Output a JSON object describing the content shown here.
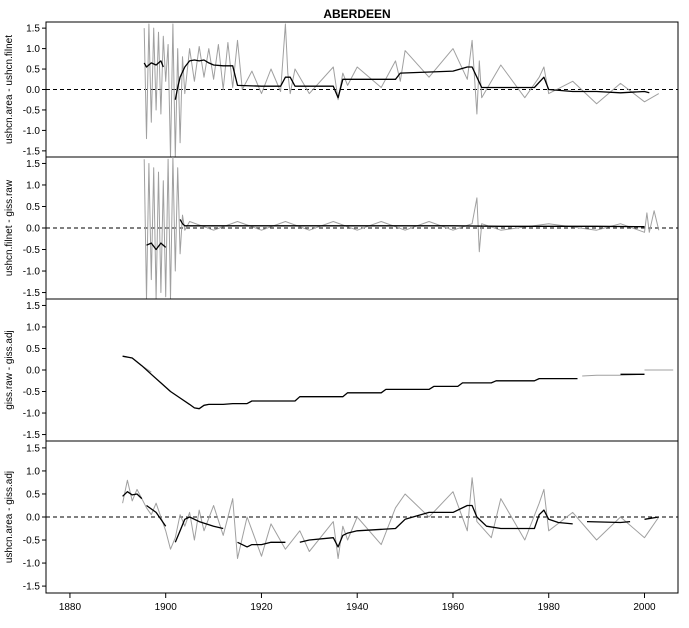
{
  "chart_data": {
    "type": "line",
    "title": "ABERDEEN",
    "xlim": [
      1875,
      2007
    ],
    "x_ticks": [
      "1880",
      "1900",
      "1920",
      "1940",
      "1960",
      "1980",
      "2000"
    ],
    "y_ticks": [
      "1.5",
      "1.0",
      "0.5",
      "0.0",
      "-0.5",
      "-1.0",
      "-1.5"
    ],
    "panels": [
      {
        "ylabel": "ushcn.area - ushcn.filnet",
        "ylim": [
          -1.65,
          1.65
        ],
        "reference_line": 0,
        "raw": {
          "color": "#a0a0a0",
          "segments": [
            {
              "x": [
                1895.5,
                1896,
                1896.5,
                1897,
                1897.5,
                1898,
                1898.5,
                1899,
                1899.5,
                1900,
                1900.5,
                1901,
                1901.5,
                1902,
                1902.5,
                1903,
                1903.5,
                1904,
                1905,
                1906,
                1907,
                1908,
                1909,
                1910,
                1911,
                1912,
                1913,
                1914,
                1915,
                1916,
                1918,
                1920,
                1922,
                1924,
                1925,
                1925.5,
                1926,
                1927,
                1930,
                1935,
                1936,
                1937,
                1938,
                1940,
                1945,
                1948,
                1949,
                1950,
                1955,
                1960,
                1963,
                1964,
                1965,
                1965.5,
                1966,
                1970,
                1975,
                1978,
                1979,
                1980,
                1985,
                1990,
                1995,
                2000,
                2003
              ],
              "y": [
                1.5,
                -1.2,
                1.6,
                -0.8,
                1.5,
                -0.5,
                1.4,
                -0.6,
                1.3,
                0.2,
                1.1,
                -1.65,
                1.6,
                -1.65,
                1.0,
                -1.3,
                0.8,
                -0.1,
                1.0,
                0.2,
                1.05,
                0.3,
                1.0,
                0.25,
                1.1,
                0.0,
                1.15,
                0.05,
                1.2,
                0.0,
                0.45,
                -0.1,
                0.5,
                -0.05,
                1.6,
                0.4,
                -0.1,
                0.5,
                -0.1,
                0.55,
                -0.25,
                0.4,
                0.1,
                0.55,
                0.05,
                0.7,
                0.2,
                0.95,
                0.3,
                1.0,
                0.25,
                1.2,
                -0.6,
                0.7,
                -0.2,
                0.6,
                -0.2,
                0.3,
                0.55,
                -0.1,
                0.2,
                -0.35,
                0.15,
                -0.3,
                -0.1
              ]
            }
          ]
        },
        "smooth": {
          "color": "#000000",
          "segments": [
            {
              "x": [
                1895.5,
                1896,
                1897,
                1898,
                1899,
                1899.5
              ],
              "y": [
                0.65,
                0.55,
                0.65,
                0.6,
                0.7,
                0.55
              ]
            },
            {
              "x": [
                1902,
                1902.5,
                1903,
                1904,
                1905,
                1906,
                1907,
                1908,
                1909,
                1910,
                1912,
                1914,
                1915,
                1920,
                1924,
                1925,
                1926,
                1927,
                1935,
                1936,
                1937,
                1940,
                1948,
                1949,
                1960,
                1963,
                1964,
                1965,
                1966,
                1977,
                1979,
                1980,
                1985,
                1990,
                1995,
                2000,
                2001
              ],
              "y": [
                -0.25,
                0.05,
                0.3,
                0.55,
                0.7,
                0.72,
                0.7,
                0.72,
                0.65,
                0.6,
                0.58,
                0.58,
                0.1,
                0.08,
                0.08,
                0.3,
                0.3,
                0.08,
                0.08,
                -0.2,
                0.25,
                0.25,
                0.25,
                0.4,
                0.45,
                0.55,
                0.55,
                0.3,
                0.05,
                0.05,
                0.3,
                0.0,
                -0.05,
                -0.05,
                -0.08,
                -0.05,
                -0.08
              ]
            }
          ]
        }
      },
      {
        "ylabel": "ushcn.filnet - giss.raw",
        "ylim": [
          -1.65,
          1.65
        ],
        "reference_line": 0,
        "raw": {
          "color": "#a0a0a0",
          "segments": [
            {
              "x": [
                1895.5,
                1896,
                1896.5,
                1897,
                1897.5,
                1898,
                1898.5,
                1899,
                1899.5,
                1900,
                1900.5,
                1901,
                1901.5,
                1902,
                1902.5,
                1903,
                1903.5,
                1904,
                1905,
                1910,
                1915,
                1920,
                1925,
                1930,
                1935,
                1940,
                1945,
                1950,
                1955,
                1960,
                1964,
                1965,
                1965.5,
                1966,
                1970,
                1980,
                1990,
                1995,
                2000,
                2000.5,
                2001,
                2002,
                2003
              ],
              "y": [
                1.6,
                -1.65,
                1.5,
                -1.2,
                1.4,
                -1.65,
                1.3,
                -1.5,
                1.1,
                -1.6,
                1.6,
                -1.65,
                1.65,
                -1.0,
                1.4,
                -0.6,
                0.3,
                -0.05,
                0.15,
                -0.05,
                0.15,
                -0.05,
                0.15,
                -0.05,
                0.15,
                -0.05,
                0.15,
                -0.05,
                0.15,
                -0.05,
                0.1,
                0.7,
                -0.55,
                0.1,
                -0.05,
                0.1,
                -0.05,
                0.1,
                -0.1,
                0.35,
                -0.1,
                0.4,
                -0.05
              ]
            }
          ]
        },
        "smooth": {
          "color": "#000000",
          "segments": [
            {
              "x": [
                1896,
                1897,
                1898,
                1899,
                1900
              ],
              "y": [
                -0.4,
                -0.35,
                -0.5,
                -0.35,
                -0.45
              ]
            },
            {
              "x": [
                1903,
                1903.5,
                1904,
                1910,
                1920,
                1930,
                1940,
                1950,
                1960,
                1970,
                1980,
                1990,
                2000
              ],
              "y": [
                0.2,
                0.1,
                0.05,
                0.05,
                0.05,
                0.05,
                0.05,
                0.05,
                0.05,
                0.04,
                0.04,
                0.04,
                0.03
              ]
            }
          ]
        }
      },
      {
        "ylabel": "giss.raw - giss.adj",
        "ylim": [
          -1.65,
          1.65
        ],
        "reference_line": null,
        "raw": {
          "color": "#a0a0a0",
          "segments": [
            {
              "x": [
                1891,
                1893,
                1895,
                1897
              ],
              "y": [
                0.32,
                0.28,
                0.1,
                -0.05
              ]
            },
            {
              "x": [
                1987,
                1990,
                1995,
                2000
              ],
              "y": [
                -0.14,
                -0.12,
                -0.12,
                -0.1
              ]
            },
            {
              "x": [
                2000,
                2006
              ],
              "y": [
                0.0,
                0.0
              ]
            }
          ]
        },
        "smooth": {
          "color": "#000000",
          "segments": [
            {
              "x": [
                1891,
                1893,
                1895,
                1897,
                1899,
                1901,
                1903,
                1905,
                1906,
                1907,
                1908,
                1909,
                1910,
                1912,
                1914,
                1917,
                1918,
                1927,
                1928,
                1937,
                1938,
                1945,
                1946,
                1955,
                1956,
                1961,
                1962,
                1968,
                1969,
                1977,
                1978,
                1986
              ],
              "y": [
                0.32,
                0.28,
                0.1,
                -0.1,
                -0.3,
                -0.5,
                -0.65,
                -0.8,
                -0.88,
                -0.9,
                -0.82,
                -0.8,
                -0.8,
                -0.8,
                -0.78,
                -0.78,
                -0.72,
                -0.72,
                -0.62,
                -0.62,
                -0.53,
                -0.53,
                -0.45,
                -0.45,
                -0.38,
                -0.38,
                -0.3,
                -0.3,
                -0.25,
                -0.25,
                -0.2,
                -0.2
              ]
            },
            {
              "x": [
                1995,
                2000
              ],
              "y": [
                -0.1,
                -0.1
              ]
            }
          ]
        }
      },
      {
        "ylabel": "ushcn.area - giss.adj",
        "ylim": [
          -1.65,
          1.65
        ],
        "reference_line": 0,
        "raw": {
          "color": "#a0a0a0",
          "segments": [
            {
              "x": [
                1891,
                1892,
                1893,
                1894,
                1895,
                1896,
                1897,
                1898,
                1899,
                1900,
                1901,
                1902,
                1903,
                1904,
                1905,
                1906,
                1907,
                1908,
                1910,
                1912,
                1914,
                1915,
                1917,
                1920,
                1922,
                1925,
                1928,
                1930,
                1935,
                1936,
                1937,
                1938,
                1940,
                1945,
                1948,
                1950,
                1955,
                1960,
                1963,
                1964,
                1965,
                1968,
                1970,
                1975,
                1978,
                1979,
                1980,
                1985,
                1990,
                1995,
                2000,
                2003
              ],
              "y": [
                0.3,
                0.8,
                0.35,
                0.6,
                0.4,
                0.2,
                0.05,
                0.3,
                0.0,
                -0.3,
                -0.7,
                -0.45,
                0.05,
                -0.2,
                0.1,
                -0.5,
                0.15,
                -0.3,
                0.25,
                -0.4,
                0.4,
                -0.9,
                0.0,
                -0.85,
                -0.15,
                -0.7,
                -0.3,
                -0.75,
                -0.1,
                -0.9,
                -0.2,
                -0.5,
                0.0,
                -0.6,
                0.2,
                0.5,
                0.0,
                0.55,
                -0.3,
                0.85,
                -0.1,
                -0.45,
                0.4,
                -0.5,
                0.3,
                0.6,
                -0.3,
                0.1,
                -0.5,
                0.0,
                -0.45,
                0.0
              ]
            }
          ]
        },
        "smooth": {
          "color": "#000000",
          "segments": [
            {
              "x": [
                1891,
                1892,
                1893,
                1894,
                1895
              ],
              "y": [
                0.45,
                0.55,
                0.48,
                0.5,
                0.4
              ]
            },
            {
              "x": [
                1896,
                1898,
                1899,
                1900
              ],
              "y": [
                0.25,
                0.1,
                -0.05,
                -0.2
              ]
            },
            {
              "x": [
                1902,
                1903,
                1904,
                1905,
                1907,
                1910,
                1912
              ],
              "y": [
                -0.55,
                -0.3,
                -0.05,
                0.0,
                -0.1,
                -0.2,
                -0.25
              ]
            },
            {
              "x": [
                1915,
                1917,
                1918,
                1920,
                1922,
                1925
              ],
              "y": [
                -0.55,
                -0.65,
                -0.6,
                -0.6,
                -0.55,
                -0.55
              ]
            },
            {
              "x": [
                1928,
                1930,
                1935,
                1936,
                1937,
                1938,
                1940,
                1948,
                1950,
                1955,
                1960,
                1963,
                1964,
                1965,
                1967,
                1970,
                1977,
                1978,
                1979,
                1980,
                1982,
                1985
              ],
              "y": [
                -0.55,
                -0.5,
                -0.45,
                -0.65,
                -0.4,
                -0.35,
                -0.3,
                -0.25,
                -0.05,
                0.1,
                0.1,
                0.25,
                0.25,
                0.0,
                -0.2,
                -0.25,
                -0.25,
                0.05,
                0.15,
                -0.05,
                -0.12,
                -0.15
              ]
            },
            {
              "x": [
                1988,
                1995,
                1997
              ],
              "y": [
                -0.1,
                -0.12,
                -0.1
              ]
            },
            {
              "x": [
                2000,
                2003
              ],
              "y": [
                -0.05,
                0.0
              ]
            }
          ]
        }
      }
    ]
  }
}
